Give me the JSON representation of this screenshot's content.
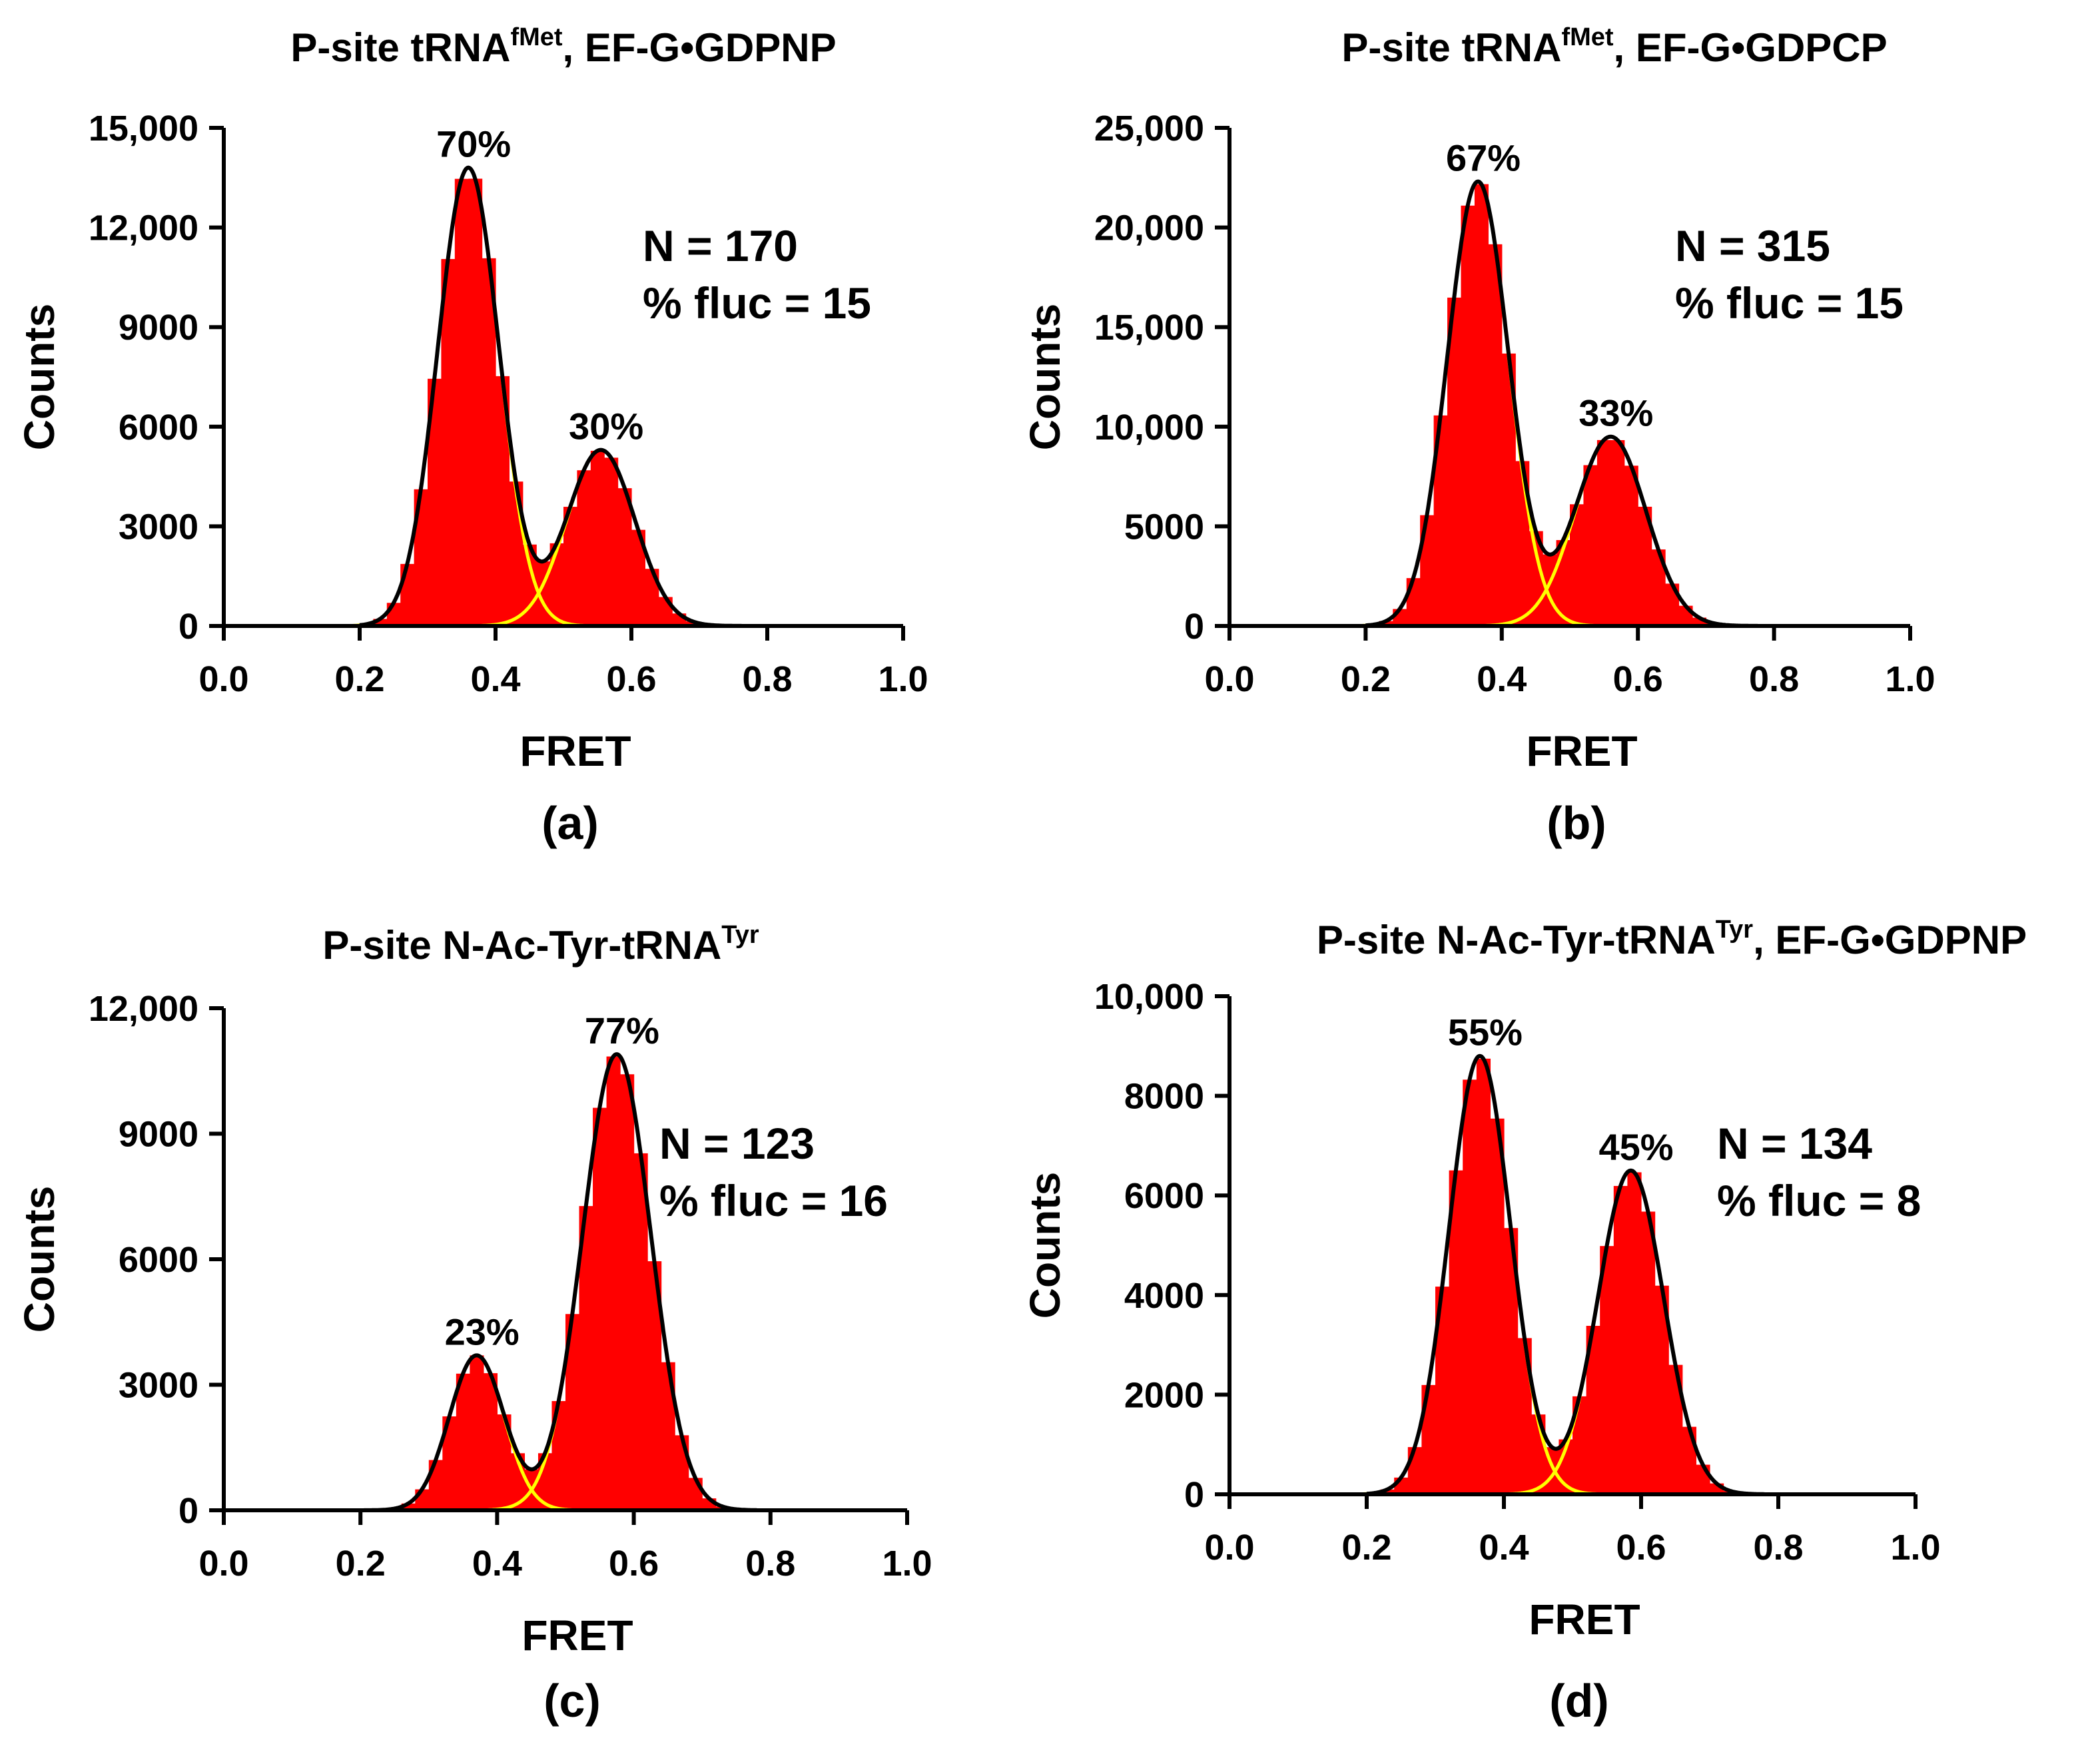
{
  "colors": {
    "bars": "#ff0000",
    "component_fit": "#ffff00",
    "total_fit": "#000000",
    "axis": "#000000"
  },
  "chart_data": [
    {
      "type": "bar",
      "panel_label": "(a)",
      "title": {
        "prefix": "P-site tRNA",
        "sup": "fMet",
        "suffix": ", EF-G•GDPNP"
      },
      "xlabel": "FRET",
      "ylabel": "Counts",
      "xlim": [
        0,
        1
      ],
      "ylim": [
        0,
        15000
      ],
      "xticks": [
        0,
        0.2,
        0.4,
        0.6,
        0.8,
        1.0
      ],
      "xtick_labels": [
        "0.0",
        "0.2",
        "0.4",
        "0.6",
        "0.8",
        "1.0"
      ],
      "yticks": [
        0,
        3000,
        6000,
        9000,
        12000,
        15000
      ],
      "ytick_labels": [
        "0",
        "3000",
        "6000",
        "9000",
        "12,000",
        "15,000"
      ],
      "bin_width": 0.02,
      "peaks": [
        {
          "center": 0.36,
          "amplitude": 13800,
          "sigma": 0.045,
          "label": "70%"
        },
        {
          "center": 0.555,
          "amplitude": 5300,
          "sigma": 0.05,
          "label": "30%"
        }
      ],
      "stats": {
        "n": "N = 170",
        "fluc": "% fluc = 15"
      }
    },
    {
      "type": "bar",
      "panel_label": "(b)",
      "title": {
        "prefix": "P-site tRNA",
        "sup": "fMet",
        "suffix": ", EF-G•GDPCP"
      },
      "xlabel": "FRET",
      "ylabel": "Counts",
      "xlim": [
        0,
        1
      ],
      "ylim": [
        0,
        25000
      ],
      "xticks": [
        0,
        0.2,
        0.4,
        0.6,
        0.8,
        1.0
      ],
      "xtick_labels": [
        "0.0",
        "0.2",
        "0.4",
        "0.6",
        "0.8",
        "1.0"
      ],
      "yticks": [
        0,
        5000,
        10000,
        15000,
        20000,
        25000
      ],
      "ytick_labels": [
        "0",
        "5000",
        "10,000",
        "15,000",
        "20,000",
        "25,000"
      ],
      "bin_width": 0.02,
      "peaks": [
        {
          "center": 0.365,
          "amplitude": 22300,
          "sigma": 0.045,
          "label": "67%"
        },
        {
          "center": 0.56,
          "amplitude": 9500,
          "sigma": 0.052,
          "label": "33%"
        }
      ],
      "stats": {
        "n": "N = 315",
        "fluc": "% fluc = 15"
      }
    },
    {
      "type": "bar",
      "panel_label": "(c)",
      "title": {
        "prefix": "P-site N-Ac-Tyr-tRNA",
        "sup": "Tyr",
        "suffix": ""
      },
      "xlabel": "FRET",
      "ylabel": "Counts",
      "xlim": [
        0,
        1
      ],
      "ylim": [
        0,
        12000
      ],
      "xticks": [
        0,
        0.2,
        0.4,
        0.6,
        0.8,
        1.0
      ],
      "xtick_labels": [
        "0.0",
        "0.2",
        "0.4",
        "0.6",
        "0.8",
        "1.0"
      ],
      "yticks": [
        0,
        3000,
        6000,
        9000,
        12000
      ],
      "ytick_labels": [
        "0",
        "3000",
        "6000",
        "9000",
        "12,000"
      ],
      "bin_width": 0.02,
      "peaks": [
        {
          "center": 0.37,
          "amplitude": 3700,
          "sigma": 0.04,
          "label": "23%"
        },
        {
          "center": 0.575,
          "amplitude": 10900,
          "sigma": 0.05,
          "label": "77%"
        }
      ],
      "stats": {
        "n": "N = 123",
        "fluc": "% fluc = 16"
      }
    },
    {
      "type": "bar",
      "panel_label": "(d)",
      "title": {
        "prefix": "P-site N-Ac-Tyr-tRNA",
        "sup": "Tyr",
        "suffix": ", EF-G•GDPNP"
      },
      "xlabel": "FRET",
      "ylabel": "Counts",
      "xlim": [
        0,
        1
      ],
      "ylim": [
        0,
        10000
      ],
      "xticks": [
        0,
        0.2,
        0.4,
        0.6,
        0.8,
        1.0
      ],
      "xtick_labels": [
        "0.0",
        "0.2",
        "0.4",
        "0.6",
        "0.8",
        "1.0"
      ],
      "yticks": [
        0,
        2000,
        4000,
        6000,
        8000,
        10000
      ],
      "ytick_labels": [
        "0",
        "2000",
        "4000",
        "6000",
        "8000",
        "10,000"
      ],
      "bin_width": 0.02,
      "peaks": [
        {
          "center": 0.365,
          "amplitude": 8800,
          "sigma": 0.045,
          "label": "55%"
        },
        {
          "center": 0.585,
          "amplitude": 6500,
          "sigma": 0.048,
          "label": "45%"
        }
      ],
      "stats": {
        "n": "N = 134",
        "fluc": "% fluc = 8"
      }
    }
  ]
}
